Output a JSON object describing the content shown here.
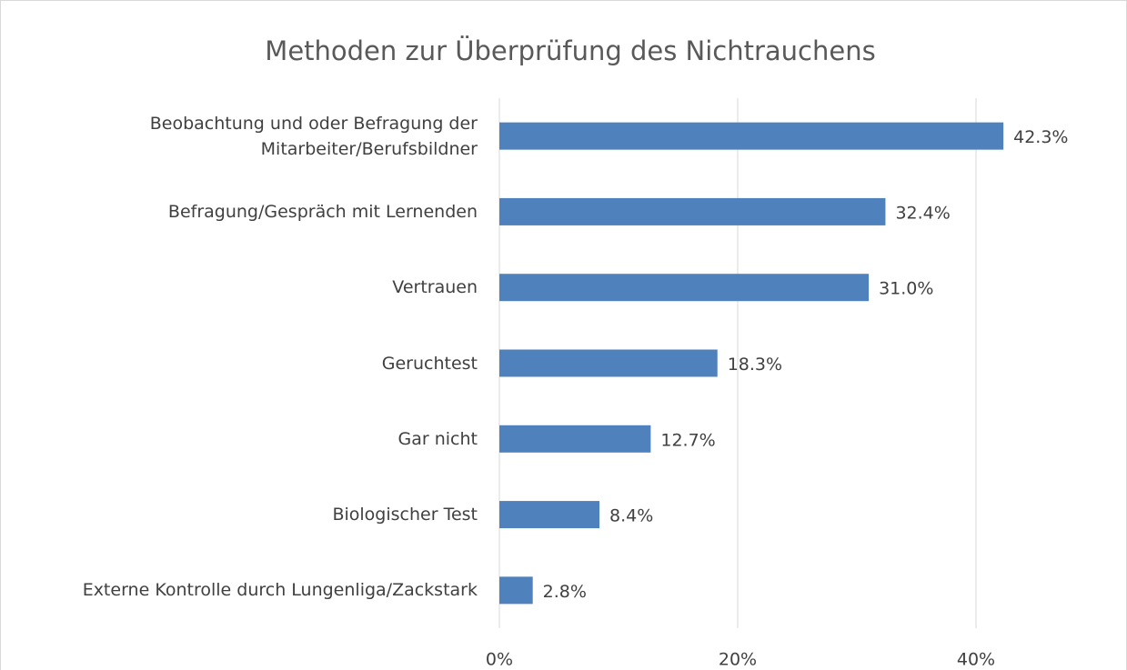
{
  "chart_data": {
    "type": "bar",
    "orientation": "horizontal",
    "title": "Methoden zur Überprüfung des Nichtrauchens",
    "categories": [
      "Beobachtung und oder Befragung der\nMitarbeiter/Berufsbildner",
      "Befragung/Gespräch mit Lernenden",
      "Vertrauen",
      "Geruchtest",
      "Gar nicht",
      "Biologischer Test",
      "Externe Kontrolle durch Lungenliga/Zackstark"
    ],
    "values": [
      42.3,
      32.4,
      31.0,
      18.3,
      12.7,
      8.4,
      2.8
    ],
    "value_labels": [
      "42.3%",
      "32.4%",
      "31.0%",
      "18.3%",
      "12.7%",
      "8.4%",
      "2.8%"
    ],
    "color": "#4f81bd",
    "xlim": [
      0,
      50
    ],
    "xticks": [
      {
        "value": 0,
        "label": "0%"
      },
      {
        "value": 20,
        "label": "20%"
      },
      {
        "value": 40,
        "label": "40%"
      }
    ],
    "grid": true
  }
}
